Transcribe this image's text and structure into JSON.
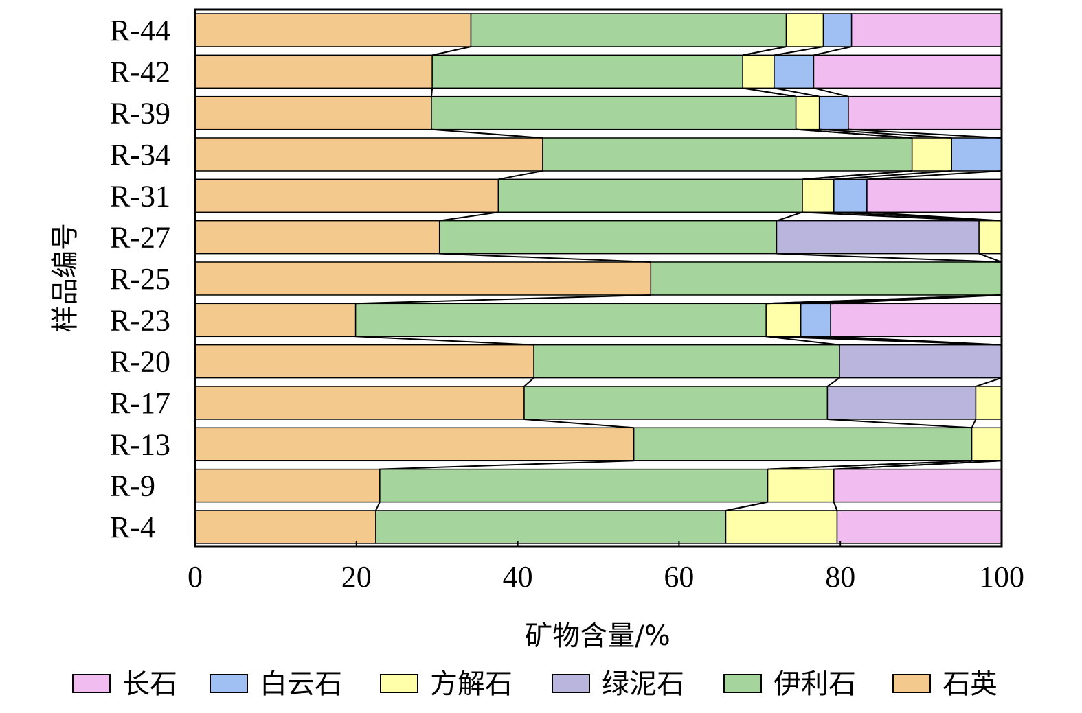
{
  "chart_data": {
    "type": "bar",
    "orientation": "horizontal",
    "stacked": true,
    "xlabel": "矿物含量/%",
    "ylabel": "样品编号",
    "xlim": [
      0,
      100
    ],
    "xticks": [
      "0",
      "20",
      "40",
      "60",
      "80",
      "100"
    ],
    "legend_position": "bottom",
    "categories": [
      "R-44",
      "R-42",
      "R-39",
      "R-34",
      "R-31",
      "R-27",
      "R-25",
      "R-23",
      "R-20",
      "R-17",
      "R-13",
      "R-9",
      "R-4"
    ],
    "series": [
      {
        "name": "石英",
        "color": "#f4c98e",
        "values": [
          34.2,
          29.4,
          29.3,
          43.1,
          37.6,
          30.3,
          56.5,
          19.9,
          42.0,
          40.8,
          54.4,
          22.9,
          22.4
        ]
      },
      {
        "name": "伊利石",
        "color": "#a5d59d",
        "values": [
          39.1,
          38.5,
          45.2,
          45.8,
          37.7,
          41.8,
          43.5,
          50.9,
          37.9,
          37.6,
          41.9,
          48.1,
          43.4
        ]
      },
      {
        "name": "绿泥石",
        "color": "#b9b5dd",
        "values": [
          0,
          0,
          0,
          0,
          0,
          25.1,
          0,
          0,
          20.1,
          18.4,
          0,
          0,
          0
        ]
      },
      {
        "name": "方解石",
        "color": "#ffffa9",
        "values": [
          4.6,
          3.9,
          2.9,
          4.9,
          3.9,
          2.8,
          0,
          4.3,
          0,
          3.2,
          3.7,
          8.2,
          13.8
        ]
      },
      {
        "name": "白云石",
        "color": "#a0c0f4",
        "values": [
          3.5,
          4.9,
          3.6,
          6.2,
          4.1,
          0,
          0,
          3.7,
          0,
          0,
          0,
          0,
          0
        ]
      },
      {
        "name": "长石",
        "color": "#f1bdf1",
        "values": [
          18.6,
          23.3,
          19.0,
          0,
          16.7,
          0,
          0,
          21.2,
          0,
          0,
          0,
          20.8,
          20.4
        ]
      }
    ],
    "legend_order": [
      "长石",
      "白云石",
      "方解石",
      "绿泥石",
      "伊利石",
      "石英"
    ]
  }
}
